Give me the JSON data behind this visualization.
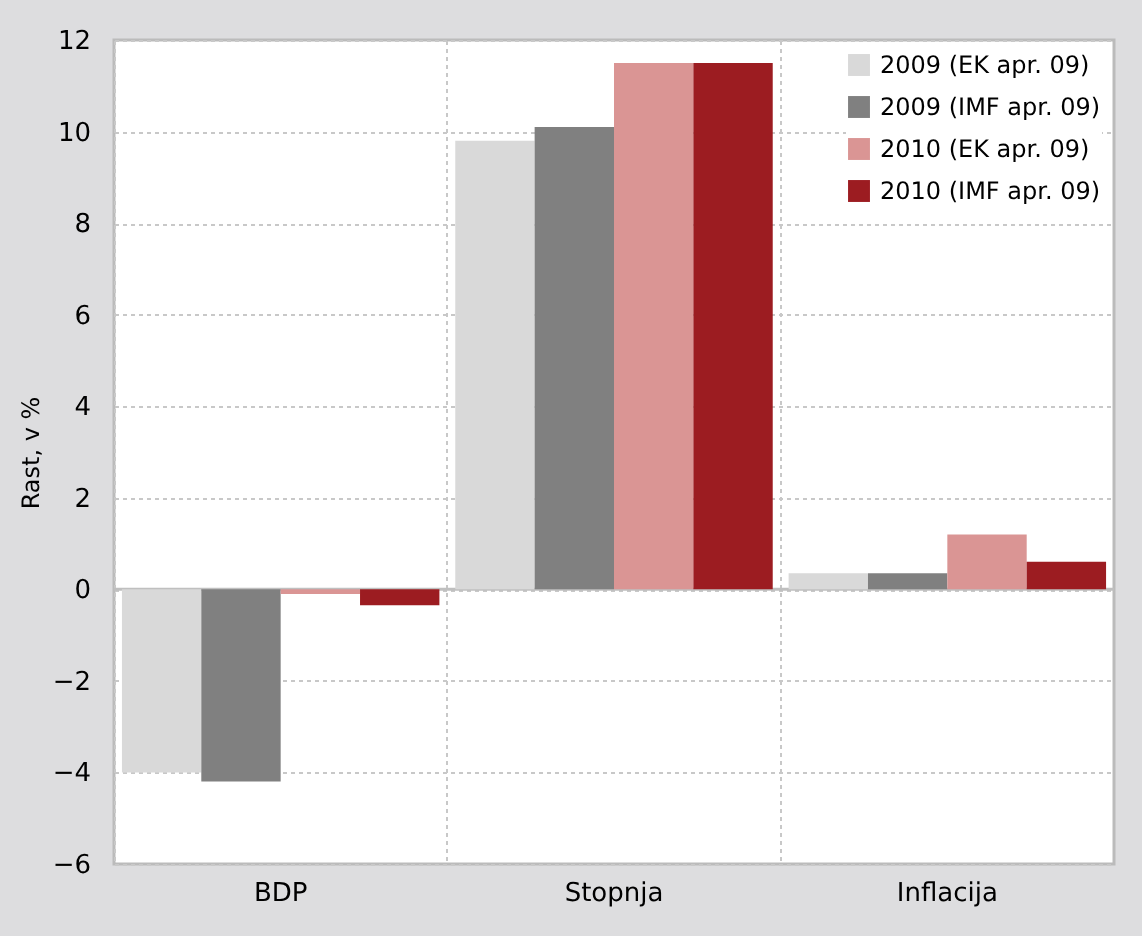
{
  "chart_data": {
    "type": "bar",
    "ylabel": "Rast, v %",
    "categories": [
      "BDP",
      "Stopnja",
      "Inflacija"
    ],
    "series": [
      {
        "name": "2009 (EK apr. 09)",
        "color": "#d9d9d9",
        "values": [
          -4.0,
          9.8,
          0.35
        ]
      },
      {
        "name": "2009 (IMF apr. 09)",
        "color": "#808080",
        "values": [
          -4.2,
          10.1,
          0.35
        ]
      },
      {
        "name": "2010 (EK apr. 09)",
        "color": "#da9594",
        "values": [
          -0.1,
          11.5,
          1.2
        ]
      },
      {
        "name": "2010 (IMF apr. 09)",
        "color": "#9c1c21",
        "values": [
          -0.35,
          11.5,
          0.6
        ]
      }
    ],
    "ylim": [
      -6,
      12
    ],
    "yticks": [
      -6,
      -4,
      -2,
      0,
      2,
      4,
      6,
      8,
      10,
      12
    ],
    "grid": true,
    "legend": "top right",
    "ref_lines": [
      {
        "axis": "y",
        "value": 0,
        "color": "#bfbfbf"
      }
    ]
  }
}
